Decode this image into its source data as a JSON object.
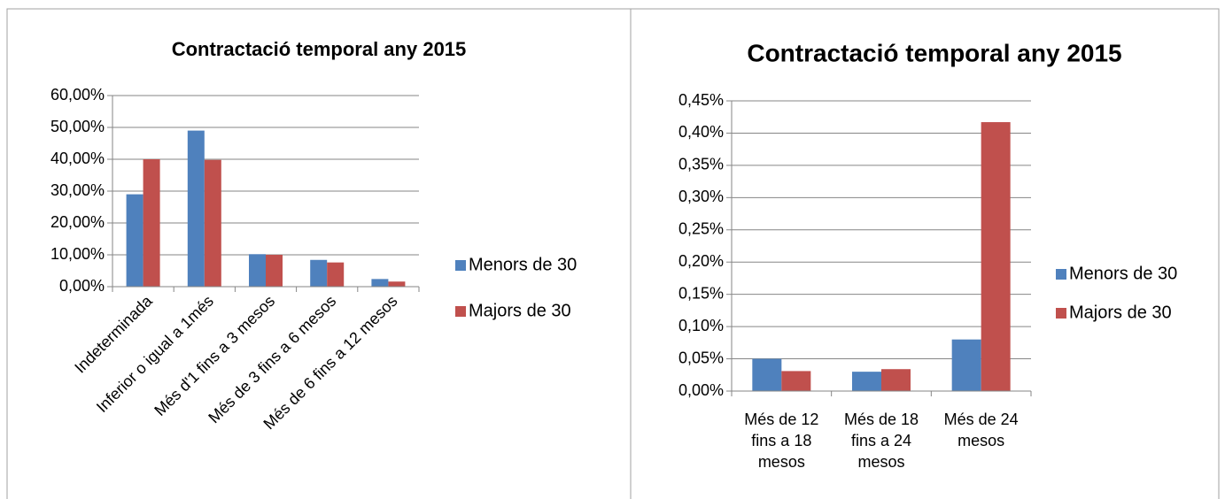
{
  "chart_data": [
    {
      "type": "bar",
      "title": "Contractació temporal any 2015",
      "categories": [
        "Indeterminada",
        "Inferior o igual a 1més",
        "Més d'1 fins a 3 mesos",
        "Més de 3 fins a 6 mesos",
        "Més de 6 fins a 12 mesos"
      ],
      "series": [
        {
          "name": "Menors de 30",
          "color": "#4f81bd",
          "values": [
            29,
            49,
            10.2,
            8.4,
            2.4
          ]
        },
        {
          "name": "Majors de 30",
          "color": "#c0504d",
          "values": [
            40,
            39.8,
            10,
            7.6,
            1.6
          ]
        }
      ],
      "ylim": [
        0,
        60
      ],
      "yticks": [
        {
          "value": 0,
          "label": "0,00%"
        },
        {
          "value": 10,
          "label": "10,00%"
        },
        {
          "value": 20,
          "label": "20,00%"
        },
        {
          "value": 30,
          "label": "30,00%"
        },
        {
          "value": 40,
          "label": "40,00%"
        },
        {
          "value": 50,
          "label": "50,00%"
        },
        {
          "value": 60,
          "label": "60,00%"
        }
      ],
      "grid": true,
      "legend": "right"
    },
    {
      "type": "bar",
      "title": "Contractació temporal any 2015",
      "categories": [
        "Més de 12 fins a 18 mesos",
        "Més de 18 fins a 24 mesos",
        "Més de 24 mesos"
      ],
      "series": [
        {
          "name": "Menors de 30",
          "color": "#4f81bd",
          "values": [
            0.05,
            0.03,
            0.08
          ]
        },
        {
          "name": "Majors de 30",
          "color": "#c0504d",
          "values": [
            0.031,
            0.034,
            0.417
          ]
        }
      ],
      "ylim": [
        0,
        0.45
      ],
      "yticks": [
        {
          "value": 0,
          "label": "0,00%"
        },
        {
          "value": 0.05,
          "label": "0,05%"
        },
        {
          "value": 0.1,
          "label": "0,10%"
        },
        {
          "value": 0.15,
          "label": "0,15%"
        },
        {
          "value": 0.2,
          "label": "0,20%"
        },
        {
          "value": 0.25,
          "label": "0,25%"
        },
        {
          "value": 0.3,
          "label": "0,30%"
        },
        {
          "value": 0.35,
          "label": "0,35%"
        },
        {
          "value": 0.4,
          "label": "0,40%"
        },
        {
          "value": 0.45,
          "label": "0,45%"
        }
      ],
      "grid": true,
      "legend": "right"
    }
  ]
}
